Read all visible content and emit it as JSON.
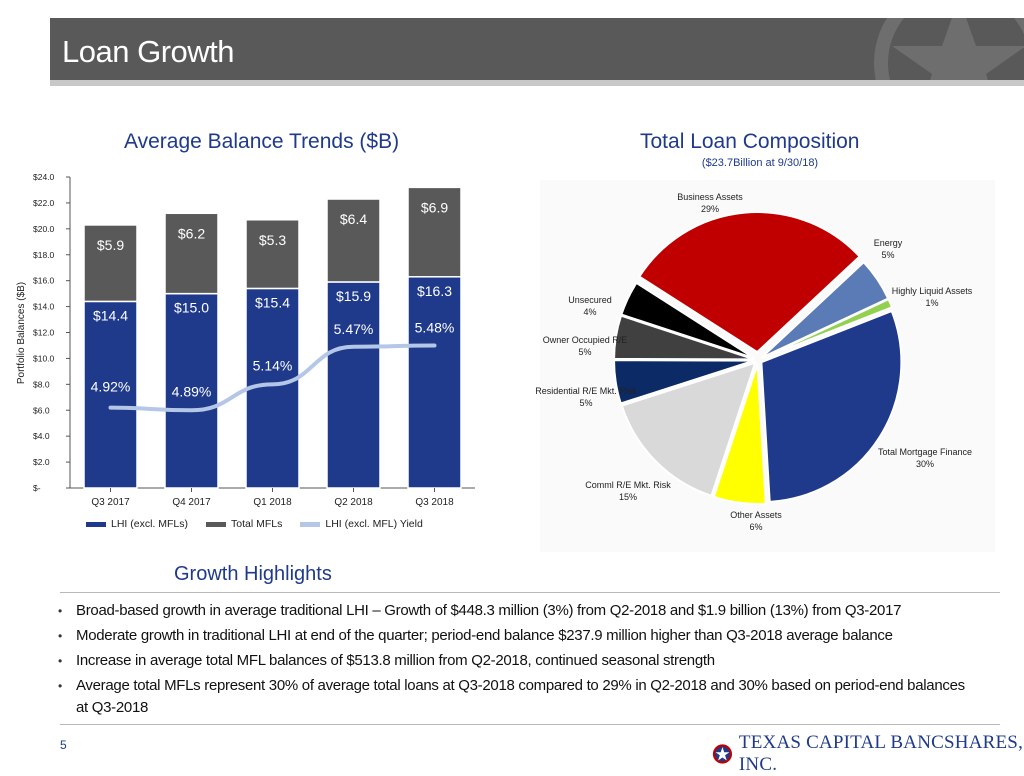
{
  "header": {
    "title": "Loan Growth"
  },
  "left_section": {
    "title": "Average Balance Trends ($B)"
  },
  "right_section": {
    "title": "Total Loan Composition",
    "subtitle": "($23.7Billion at 9/30/18)"
  },
  "highlights": {
    "title": "Growth Highlights",
    "bullets": [
      "Broad-based growth in average traditional LHI – Growth of $448.3 million (3%) from Q2-2018 and $1.9 billion (13%) from Q3-2017",
      "Moderate growth in traditional LHI at end of the quarter; period-end balance $237.9 million higher than Q3-2018 average balance",
      "Increase in average total MFL balances of $513.8 million from Q2-2018, continued seasonal strength",
      "Average total MFLs represent 30% of average total loans at Q3-2018 compared to 29% in Q2-2018 and 30% based on period-end balances at Q3-2018"
    ]
  },
  "footer": {
    "page_number": "5",
    "logo_text": "TEXAS CAPITAL BANCSHARES, INC."
  },
  "colors": {
    "lhi": "#1f3a8a",
    "mfl": "#595959",
    "yield": "#b4c7e7",
    "title_bar": "#595959",
    "accent": "#1f3a8a"
  },
  "chart_data": [
    {
      "type": "bar",
      "title": "Average Balance Trends ($B)",
      "ylabel": "Portfolio Balances ($B)",
      "ylim": [
        0,
        24
      ],
      "yticks": [
        "$-",
        "$2.0",
        "$4.0",
        "$6.0",
        "$8.0",
        "$10.0",
        "$12.0",
        "$14.0",
        "$16.0",
        "$18.0",
        "$20.0",
        "$22.0",
        "$24.0"
      ],
      "categories": [
        "Q3 2017",
        "Q4 2017",
        "Q1 2018",
        "Q2 2018",
        "Q3 2018"
      ],
      "stacked": true,
      "series": [
        {
          "name": "LHI (excl. MFLs)",
          "values": [
            14.4,
            15.0,
            15.4,
            15.9,
            16.3
          ],
          "labels": [
            "$14.4",
            "$15.0",
            "$15.4",
            "$15.9",
            "$16.3"
          ]
        },
        {
          "name": "Total MFLs",
          "values": [
            5.9,
            6.2,
            5.3,
            6.4,
            6.9
          ],
          "labels": [
            "$5.9",
            "$6.2",
            "$5.3",
            "$6.4",
            "$6.9"
          ]
        }
      ],
      "line_series": {
        "name": "LHI (excl. MFL) Yield",
        "values": [
          4.92,
          4.89,
          5.14,
          5.47,
          5.48
        ],
        "labels": [
          "4.92%",
          "4.89%",
          "5.14%",
          "5.47%",
          "5.48%"
        ],
        "y_on_balance_axis": [
          6.2,
          6.0,
          8.0,
          10.9,
          11.0
        ]
      },
      "legend": [
        "LHI (excl. MFLs)",
        "Total MFLs",
        "LHI (excl. MFL) Yield"
      ],
      "legend_position": "bottom"
    },
    {
      "type": "pie",
      "title": "Total Loan Composition",
      "subtitle": "($23.7Billion at 9/30/18)",
      "slices": [
        {
          "name": "Business Assets",
          "value": 29,
          "label": "29%",
          "color": "#c00000"
        },
        {
          "name": "Energy",
          "value": 5,
          "label": "5%",
          "color": "#5a7bb5"
        },
        {
          "name": "Highly Liquid Assets",
          "value": 1,
          "label": "1%",
          "color": "#92d050"
        },
        {
          "name": "Total Mortgage Finance",
          "value": 30,
          "label": "30%",
          "color": "#1f3a8a"
        },
        {
          "name": "Other Assets",
          "value": 6,
          "label": "6%",
          "color": "#ffff00"
        },
        {
          "name": "Comml R/E Mkt. Risk",
          "value": 15,
          "label": "15%",
          "color": "#d9d9d9"
        },
        {
          "name": "Residential R/E Mkt. Risk",
          "value": 5,
          "label": "5%",
          "color": "#0b2a66"
        },
        {
          "name": "Owner Occupied R/E",
          "value": 5,
          "label": "5%",
          "color": "#404040"
        },
        {
          "name": "Unsecured",
          "value": 4,
          "label": "4%",
          "color": "#000000"
        }
      ]
    }
  ]
}
